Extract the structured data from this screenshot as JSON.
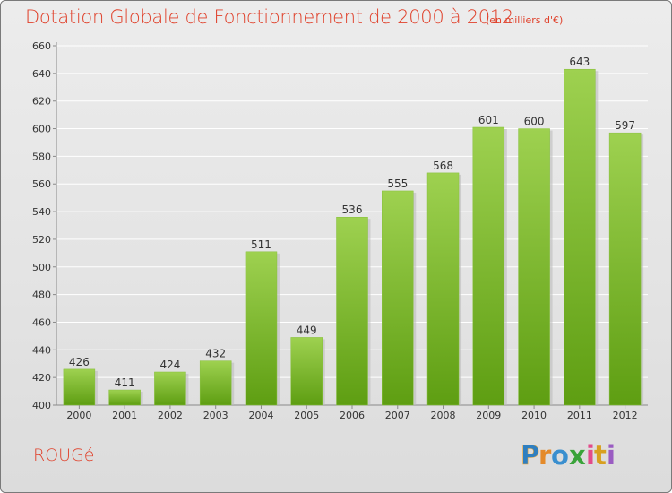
{
  "header": {
    "title": "Dotation Globale de Fonctionnement de 2000 à 2012",
    "subtitle": "(en milliers d'€)"
  },
  "footer": {
    "commune": "ROUGé",
    "logo_text": "Proxiti"
  },
  "colors": {
    "accent": "#e0412b",
    "bar_top": "#9ed150",
    "bar_bottom": "#5e9e12",
    "grid": "#ffffff"
  },
  "chart_data": {
    "type": "bar",
    "categories": [
      "2000",
      "2001",
      "2002",
      "2003",
      "2004",
      "2005",
      "2006",
      "2007",
      "2008",
      "2009",
      "2010",
      "2011",
      "2012"
    ],
    "values": [
      426,
      411,
      424,
      432,
      511,
      449,
      536,
      555,
      568,
      601,
      600,
      643,
      597
    ],
    "title": "Dotation Globale de Fonctionnement de 2000 à 2012",
    "xlabel": "",
    "ylabel": "",
    "ylim": [
      400,
      660
    ],
    "yticks": [
      400,
      420,
      440,
      460,
      480,
      500,
      520,
      540,
      560,
      580,
      600,
      620,
      640,
      660
    ],
    "grid": true,
    "data_labels": true
  }
}
